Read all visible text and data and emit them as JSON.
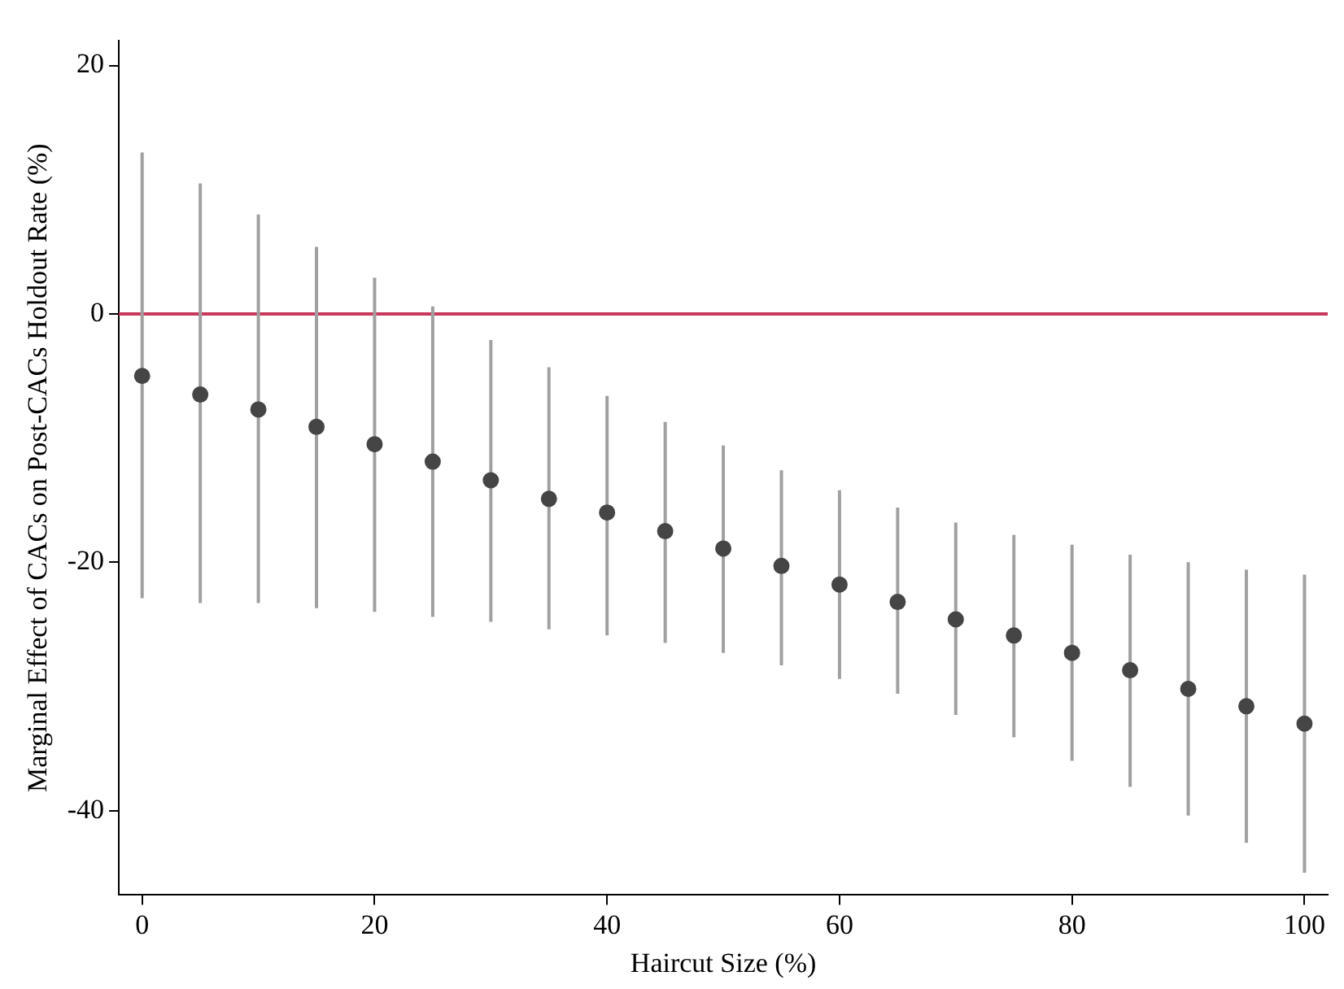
{
  "chart_data": {
    "type": "scatter",
    "xlabel": "Haircut Size (%)",
    "ylabel": "Marginal Effect of CACs on Post-CACs Holdout Rate (%)",
    "x": [
      0,
      5,
      10,
      15,
      20,
      25,
      30,
      35,
      40,
      45,
      50,
      55,
      60,
      65,
      70,
      75,
      80,
      85,
      90,
      95,
      100
    ],
    "series": [
      {
        "color": "#454545",
        "values": [
          -5.0,
          -6.5,
          -7.7,
          -9.1,
          -10.5,
          -11.9,
          -13.4,
          -14.9,
          -16.0,
          -17.5,
          -18.9,
          -20.3,
          -21.8,
          -23.2,
          -24.6,
          -25.9,
          -27.3,
          -28.7,
          -30.2,
          -31.6,
          -33.0
        ],
        "errors": [
          [
            -22.9,
            13.0
          ],
          [
            -23.3,
            10.5
          ],
          [
            -23.3,
            8.0
          ],
          [
            -23.7,
            5.4
          ],
          [
            -24.0,
            2.9
          ],
          [
            -24.4,
            0.6
          ],
          [
            -24.8,
            -2.1
          ],
          [
            -25.4,
            -4.3
          ],
          [
            -25.9,
            -6.6
          ],
          [
            -26.5,
            -8.7
          ],
          [
            -27.3,
            -10.6
          ],
          [
            -28.3,
            -12.6
          ],
          [
            -29.4,
            -14.2
          ],
          [
            -30.6,
            -15.6
          ],
          [
            -32.3,
            -16.8
          ],
          [
            -34.1,
            -17.8
          ],
          [
            -36.0,
            -18.6
          ],
          [
            -38.1,
            -19.4
          ],
          [
            -40.4,
            -20.0
          ],
          [
            -42.6,
            -20.6
          ],
          [
            -45.0,
            -21.0
          ]
        ]
      }
    ],
    "xlim": [
      -2,
      102
    ],
    "xticks": [
      0,
      20,
      40,
      60,
      80,
      100
    ],
    "ylim": [
      -46.8,
      22
    ],
    "yticks": [
      -40,
      -20,
      0,
      20
    ],
    "ref_lines": [
      {
        "axis": "y",
        "value": 0,
        "color": "#c8385a"
      }
    ],
    "grid": false,
    "legend": false,
    "marker": "circle"
  }
}
